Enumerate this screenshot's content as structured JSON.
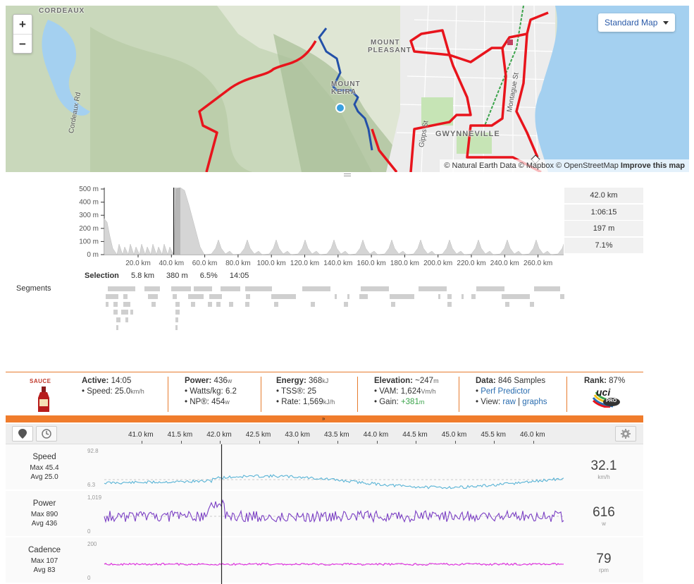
{
  "map": {
    "zoom_in": "+",
    "zoom_out": "−",
    "style_selector": "Standard Map",
    "attribution_text": "© Natural Earth Data © Mapbox © OpenStreetMap",
    "attribution_link": "Improve this map",
    "labels": {
      "cordeaux": "CORDEAUX",
      "mount_pleasant_1": "MOUNT",
      "mount_pleasant_2": "PLEASANT",
      "mount_keira_1": "MOUNT",
      "mount_keira_2": "KEIRA",
      "gwynneville": "GWYNNEVILLE",
      "cordeaux_rd": "Cordeaux Rd",
      "gipps_st": "Gipps St",
      "montague_st": "Montague St"
    },
    "colors": {
      "route": "#e8141c",
      "selection": "#2350a8",
      "water": "#a4d0f0",
      "marker": "#3aa0e0"
    }
  },
  "elevation": {
    "y_ticks": [
      "500 m",
      "400 m",
      "300 m",
      "200 m",
      "100 m",
      "0 m"
    ],
    "x_ticks": [
      "20.0 km",
      "40.0 km",
      "60.0 km",
      "80.0 km",
      "100.0 km",
      "120.0 km",
      "140.0 km",
      "160.0 km",
      "180.0 km",
      "200.0 km",
      "220.0 km",
      "240.0 km",
      "260.0 km"
    ],
    "stats": [
      "42.0 km",
      "1:06:15",
      "197 m",
      "7.1%"
    ],
    "selection_label": "Selection",
    "selection_values": [
      "5.8 km",
      "380 m",
      "6.5%",
      "14:05"
    ],
    "segments_label": "Segments"
  },
  "info": {
    "sauce_label": "SAUCE",
    "active": {
      "label": "Active:",
      "value": "14:05",
      "speed_label": "Speed:",
      "speed_value": "25.0",
      "speed_unit": "km/h"
    },
    "power": {
      "label": "Power:",
      "value": "436",
      "unit": "w",
      "wkg_label": "Watts/kg:",
      "wkg_value": "6.2",
      "np_label": "NP®:",
      "np_value": "454",
      "np_unit": "w"
    },
    "energy": {
      "label": "Energy:",
      "value": "368",
      "unit": "kJ",
      "tss_label": "TSS®:",
      "tss_value": "25",
      "rate_label": "Rate:",
      "rate_value": "1,569",
      "rate_unit": "kJ/h"
    },
    "elevation": {
      "label": "Elevation:",
      "value": "~247",
      "unit": "m",
      "vam_label": "VAM:",
      "vam_value": "1,624",
      "vam_unit": "Vm/h",
      "gain_label": "Gain:",
      "gain_value": "+381",
      "gain_unit": "m"
    },
    "data": {
      "label": "Data:",
      "value": "846 Samples",
      "perf_link": "Perf Predictor",
      "view_label": "View:",
      "raw_link": "raw",
      "sep": "|",
      "graphs_link": "graphs"
    },
    "rank": {
      "label": "Rank:",
      "value": "87%",
      "badge_text": "uci",
      "badge_sub": "PRO"
    }
  },
  "analysis": {
    "km_ticks": [
      "41.0 km",
      "41.5 km",
      "42.0 km",
      "42.5 km",
      "43.0 km",
      "43.5 km",
      "44.0 km",
      "44.5 km",
      "45.0 km",
      "45.5 km",
      "46.0 km"
    ],
    "metrics": [
      {
        "name": "Speed",
        "max": "Max 45.4",
        "avg": "Avg 25.0",
        "top": "92.8",
        "bottom": "6.3",
        "current": "32.1",
        "unit": "km/h",
        "color": "#5ab4d6"
      },
      {
        "name": "Power",
        "max": "Max 890",
        "avg": "Avg 436",
        "top": "1,019",
        "bottom": "0",
        "current": "616",
        "unit": "w",
        "color": "#7b3fc4"
      },
      {
        "name": "Cadence",
        "max": "Max 107",
        "avg": "Avg 83",
        "top": "200",
        "bottom": "0",
        "current": "79",
        "unit": "rpm",
        "color": "#e02be0"
      }
    ]
  }
}
